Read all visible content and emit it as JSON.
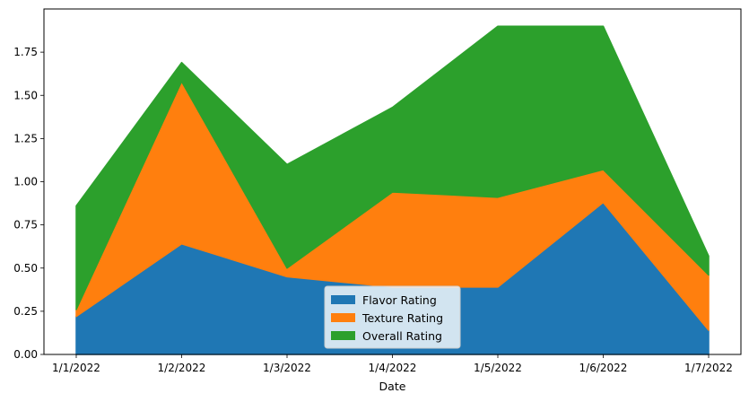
{
  "chart_data": {
    "type": "area",
    "stacked": true,
    "title": "",
    "xlabel": "Date",
    "ylabel": "",
    "categories": [
      "1/1/2022",
      "1/2/2022",
      "1/3/2022",
      "1/4/2022",
      "1/5/2022",
      "1/6/2022",
      "1/7/2022"
    ],
    "ylim": [
      0,
      2.0
    ],
    "yticks": [
      "0.00",
      "0.25",
      "0.50",
      "0.75",
      "1.00",
      "1.25",
      "1.50",
      "1.75"
    ],
    "grid": false,
    "legend_position": "bottom-center",
    "series": [
      {
        "name": "Flavor Rating",
        "color": "#1f77b4",
        "values": [
          0.22,
          0.64,
          0.45,
          0.39,
          0.39,
          0.88,
          0.14
        ]
      },
      {
        "name": "Texture Rating",
        "color": "#ff7f0e",
        "values": [
          0.04,
          0.94,
          0.05,
          0.55,
          0.52,
          0.19,
          0.32
        ]
      },
      {
        "name": "Overall Rating",
        "color": "#2ca02c",
        "values": [
          0.6,
          0.11,
          0.6,
          0.49,
          0.99,
          0.83,
          0.11
        ]
      }
    ]
  }
}
